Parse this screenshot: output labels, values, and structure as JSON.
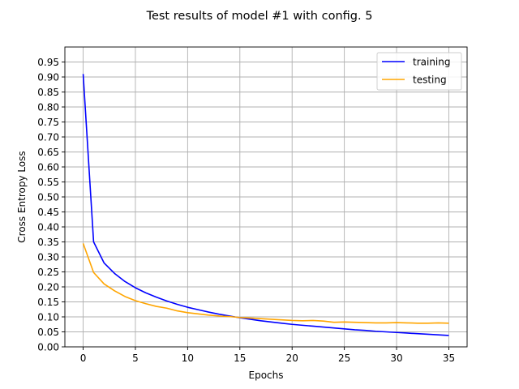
{
  "chart_data": {
    "type": "line",
    "title": "Test results of model #1 with config. 5",
    "xlabel": "Epochs",
    "ylabel": "Cross Entropy Loss",
    "xlim": [
      -1.75,
      36.75
    ],
    "ylim": [
      0,
      1.0
    ],
    "x_ticks": [
      0,
      5,
      10,
      15,
      20,
      25,
      30,
      35
    ],
    "y_ticks": [
      0.0,
      0.05,
      0.1,
      0.15,
      0.2,
      0.25,
      0.3,
      0.35,
      0.4,
      0.45,
      0.5,
      0.55,
      0.6,
      0.65,
      0.7,
      0.75,
      0.8,
      0.85,
      0.9,
      0.95
    ],
    "y_tick_labels": [
      "0.00",
      "0.05",
      "0.10",
      "0.15",
      "0.20",
      "0.25",
      "0.30",
      "0.35",
      "0.40",
      "0.45",
      "0.50",
      "0.55",
      "0.60",
      "0.65",
      "0.70",
      "0.75",
      "0.80",
      "0.85",
      "0.90",
      "0.95"
    ],
    "grid": true,
    "legend": "top-right",
    "x": [
      0,
      1,
      2,
      3,
      4,
      5,
      6,
      7,
      8,
      9,
      10,
      11,
      12,
      13,
      14,
      15,
      16,
      17,
      18,
      19,
      20,
      21,
      22,
      23,
      24,
      25,
      26,
      27,
      28,
      29,
      30,
      31,
      32,
      33,
      34,
      35
    ],
    "series": [
      {
        "name": "training",
        "color": "#0000ff",
        "values": [
          0.91,
          0.35,
          0.28,
          0.245,
          0.218,
          0.197,
          0.18,
          0.166,
          0.153,
          0.142,
          0.132,
          0.124,
          0.116,
          0.109,
          0.103,
          0.097,
          0.092,
          0.087,
          0.083,
          0.079,
          0.075,
          0.072,
          0.069,
          0.066,
          0.063,
          0.06,
          0.057,
          0.055,
          0.052,
          0.05,
          0.048,
          0.046,
          0.044,
          0.042,
          0.04,
          0.038
        ]
      },
      {
        "name": "testing",
        "color": "#ffa500",
        "values": [
          0.345,
          0.248,
          0.21,
          0.187,
          0.168,
          0.154,
          0.144,
          0.135,
          0.129,
          0.12,
          0.114,
          0.11,
          0.106,
          0.103,
          0.101,
          0.098,
          0.096,
          0.094,
          0.092,
          0.09,
          0.088,
          0.087,
          0.088,
          0.086,
          0.082,
          0.083,
          0.082,
          0.081,
          0.08,
          0.08,
          0.081,
          0.08,
          0.079,
          0.079,
          0.08,
          0.079
        ]
      }
    ]
  }
}
